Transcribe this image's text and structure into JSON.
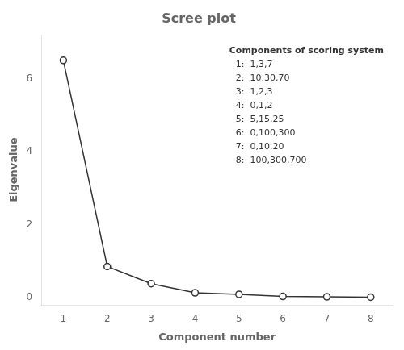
{
  "chart_data": {
    "type": "line",
    "title": "Scree plot",
    "xlabel": "Component number",
    "ylabel": "Eigenvalue",
    "x": [
      1,
      2,
      3,
      4,
      5,
      6,
      7,
      8
    ],
    "values": [
      6.5,
      0.85,
      0.38,
      0.13,
      0.09,
      0.03,
      0.02,
      0.01
    ],
    "color": "#333333",
    "marker": "circle",
    "xlim": [
      0.5,
      8.5
    ],
    "ylim": [
      -0.2,
      7.2
    ],
    "xticks": [
      1,
      2,
      3,
      4,
      5,
      6,
      7,
      8
    ],
    "yticks": [
      0,
      2,
      4,
      6
    ],
    "grid": false,
    "annotations": [
      "Components of scoring system",
      "1:  1,3,7",
      "2:  10,30,70",
      "3:  1,2,3",
      "4:  0,1,2",
      "5:  5,15,25",
      "6:  0,100,300",
      "7:  0,10,20",
      "8:  100,300,700"
    ]
  }
}
